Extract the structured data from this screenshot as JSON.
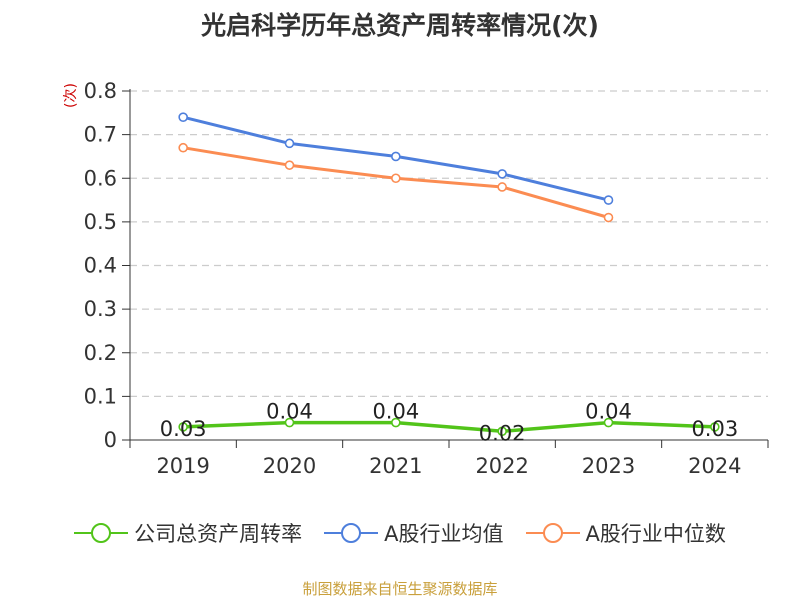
{
  "chart_data": {
    "type": "line",
    "title": "光启科学历年总资产周转率情况(次)",
    "ylabel": "(次)",
    "xlabel": "",
    "categories": [
      "2019",
      "2020",
      "2021",
      "2022",
      "2023",
      "2024"
    ],
    "ylim": [
      0,
      0.8
    ],
    "yticks": [
      "0",
      "0.1",
      "0.2",
      "0.3",
      "0.4",
      "0.5",
      "0.6",
      "0.7",
      "0.8"
    ],
    "grid": true,
    "legend_position": "bottom",
    "series": [
      {
        "name": "公司总资产周转率",
        "color": "#52c41a",
        "values": [
          0.03,
          0.04,
          0.04,
          0.02,
          0.04,
          0.03
        ],
        "data_labels": [
          "0.03",
          "0.04",
          "0.04",
          "0.02",
          "0.04",
          "0.03"
        ]
      },
      {
        "name": "A股行业均值",
        "color": "#4e7fdc",
        "values": [
          0.74,
          0.68,
          0.65,
          0.61,
          0.55,
          null
        ]
      },
      {
        "name": "A股行业中位数",
        "color": "#fb8c52",
        "values": [
          0.67,
          0.63,
          0.6,
          0.58,
          0.51,
          null
        ]
      }
    ]
  },
  "source": "制图数据来自恒生聚源数据库"
}
